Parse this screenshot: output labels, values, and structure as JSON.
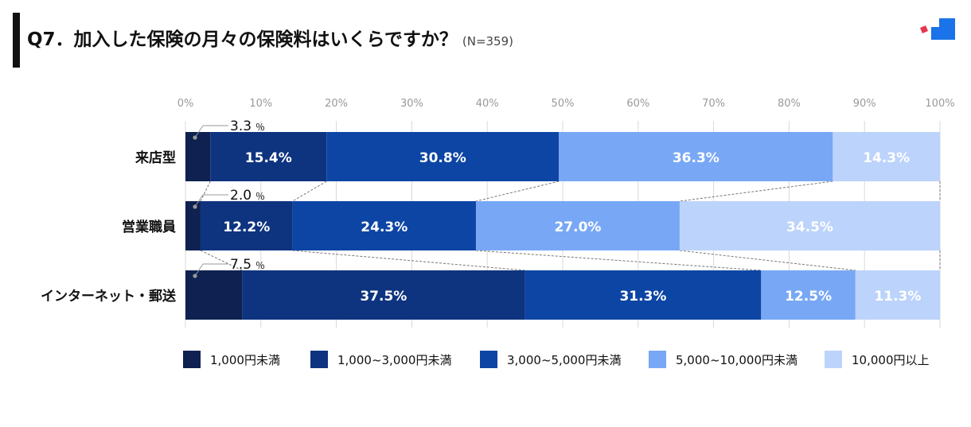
{
  "title": {
    "text": "Q7．加入した保険の月々の保険料はいくらですか？",
    "sample": "(N=359)"
  },
  "chart_data": {
    "type": "bar",
    "orientation": "horizontal",
    "stacked": true,
    "normalized": true,
    "title": "Q7．加入した保険の月々の保険料はいくらですか？",
    "categories": [
      "来店型",
      "営業職員",
      "インターネット・郵送"
    ],
    "series": [
      {
        "name": "1,000円未満",
        "color": "#0e2150",
        "values": [
          3.3,
          2.0,
          7.5
        ]
      },
      {
        "name": "1,000~3,000円未満",
        "color": "#0e3480",
        "values": [
          15.4,
          12.2,
          37.5
        ]
      },
      {
        "name": "3,000~5,000円未満",
        "color": "#0d45a5",
        "values": [
          30.8,
          24.3,
          31.3
        ]
      },
      {
        "name": "5,000~10,000円未満",
        "color": "#78a8f5",
        "values": [
          36.3,
          27.0,
          12.5
        ]
      },
      {
        "name": "10,000円以上",
        "color": "#bcd3fb",
        "values": [
          14.3,
          34.5,
          11.3
        ]
      }
    ],
    "value_labels": [
      [
        "3.3",
        "15.4%",
        "30.8%",
        "36.3%",
        "14.3%"
      ],
      [
        "2.0",
        "12.2%",
        "24.3%",
        "27.0%",
        "34.5%"
      ],
      [
        "7.5",
        "37.5%",
        "31.3%",
        "12.5%",
        "11.3%"
      ]
    ],
    "small_label_unit": "％",
    "xticks": [
      "0%",
      "10%",
      "20%",
      "30%",
      "40%",
      "50%",
      "60%",
      "70%",
      "80%",
      "90%",
      "100%"
    ],
    "xlim": [
      0,
      100
    ],
    "grid": true,
    "legend_position": "bottom"
  }
}
